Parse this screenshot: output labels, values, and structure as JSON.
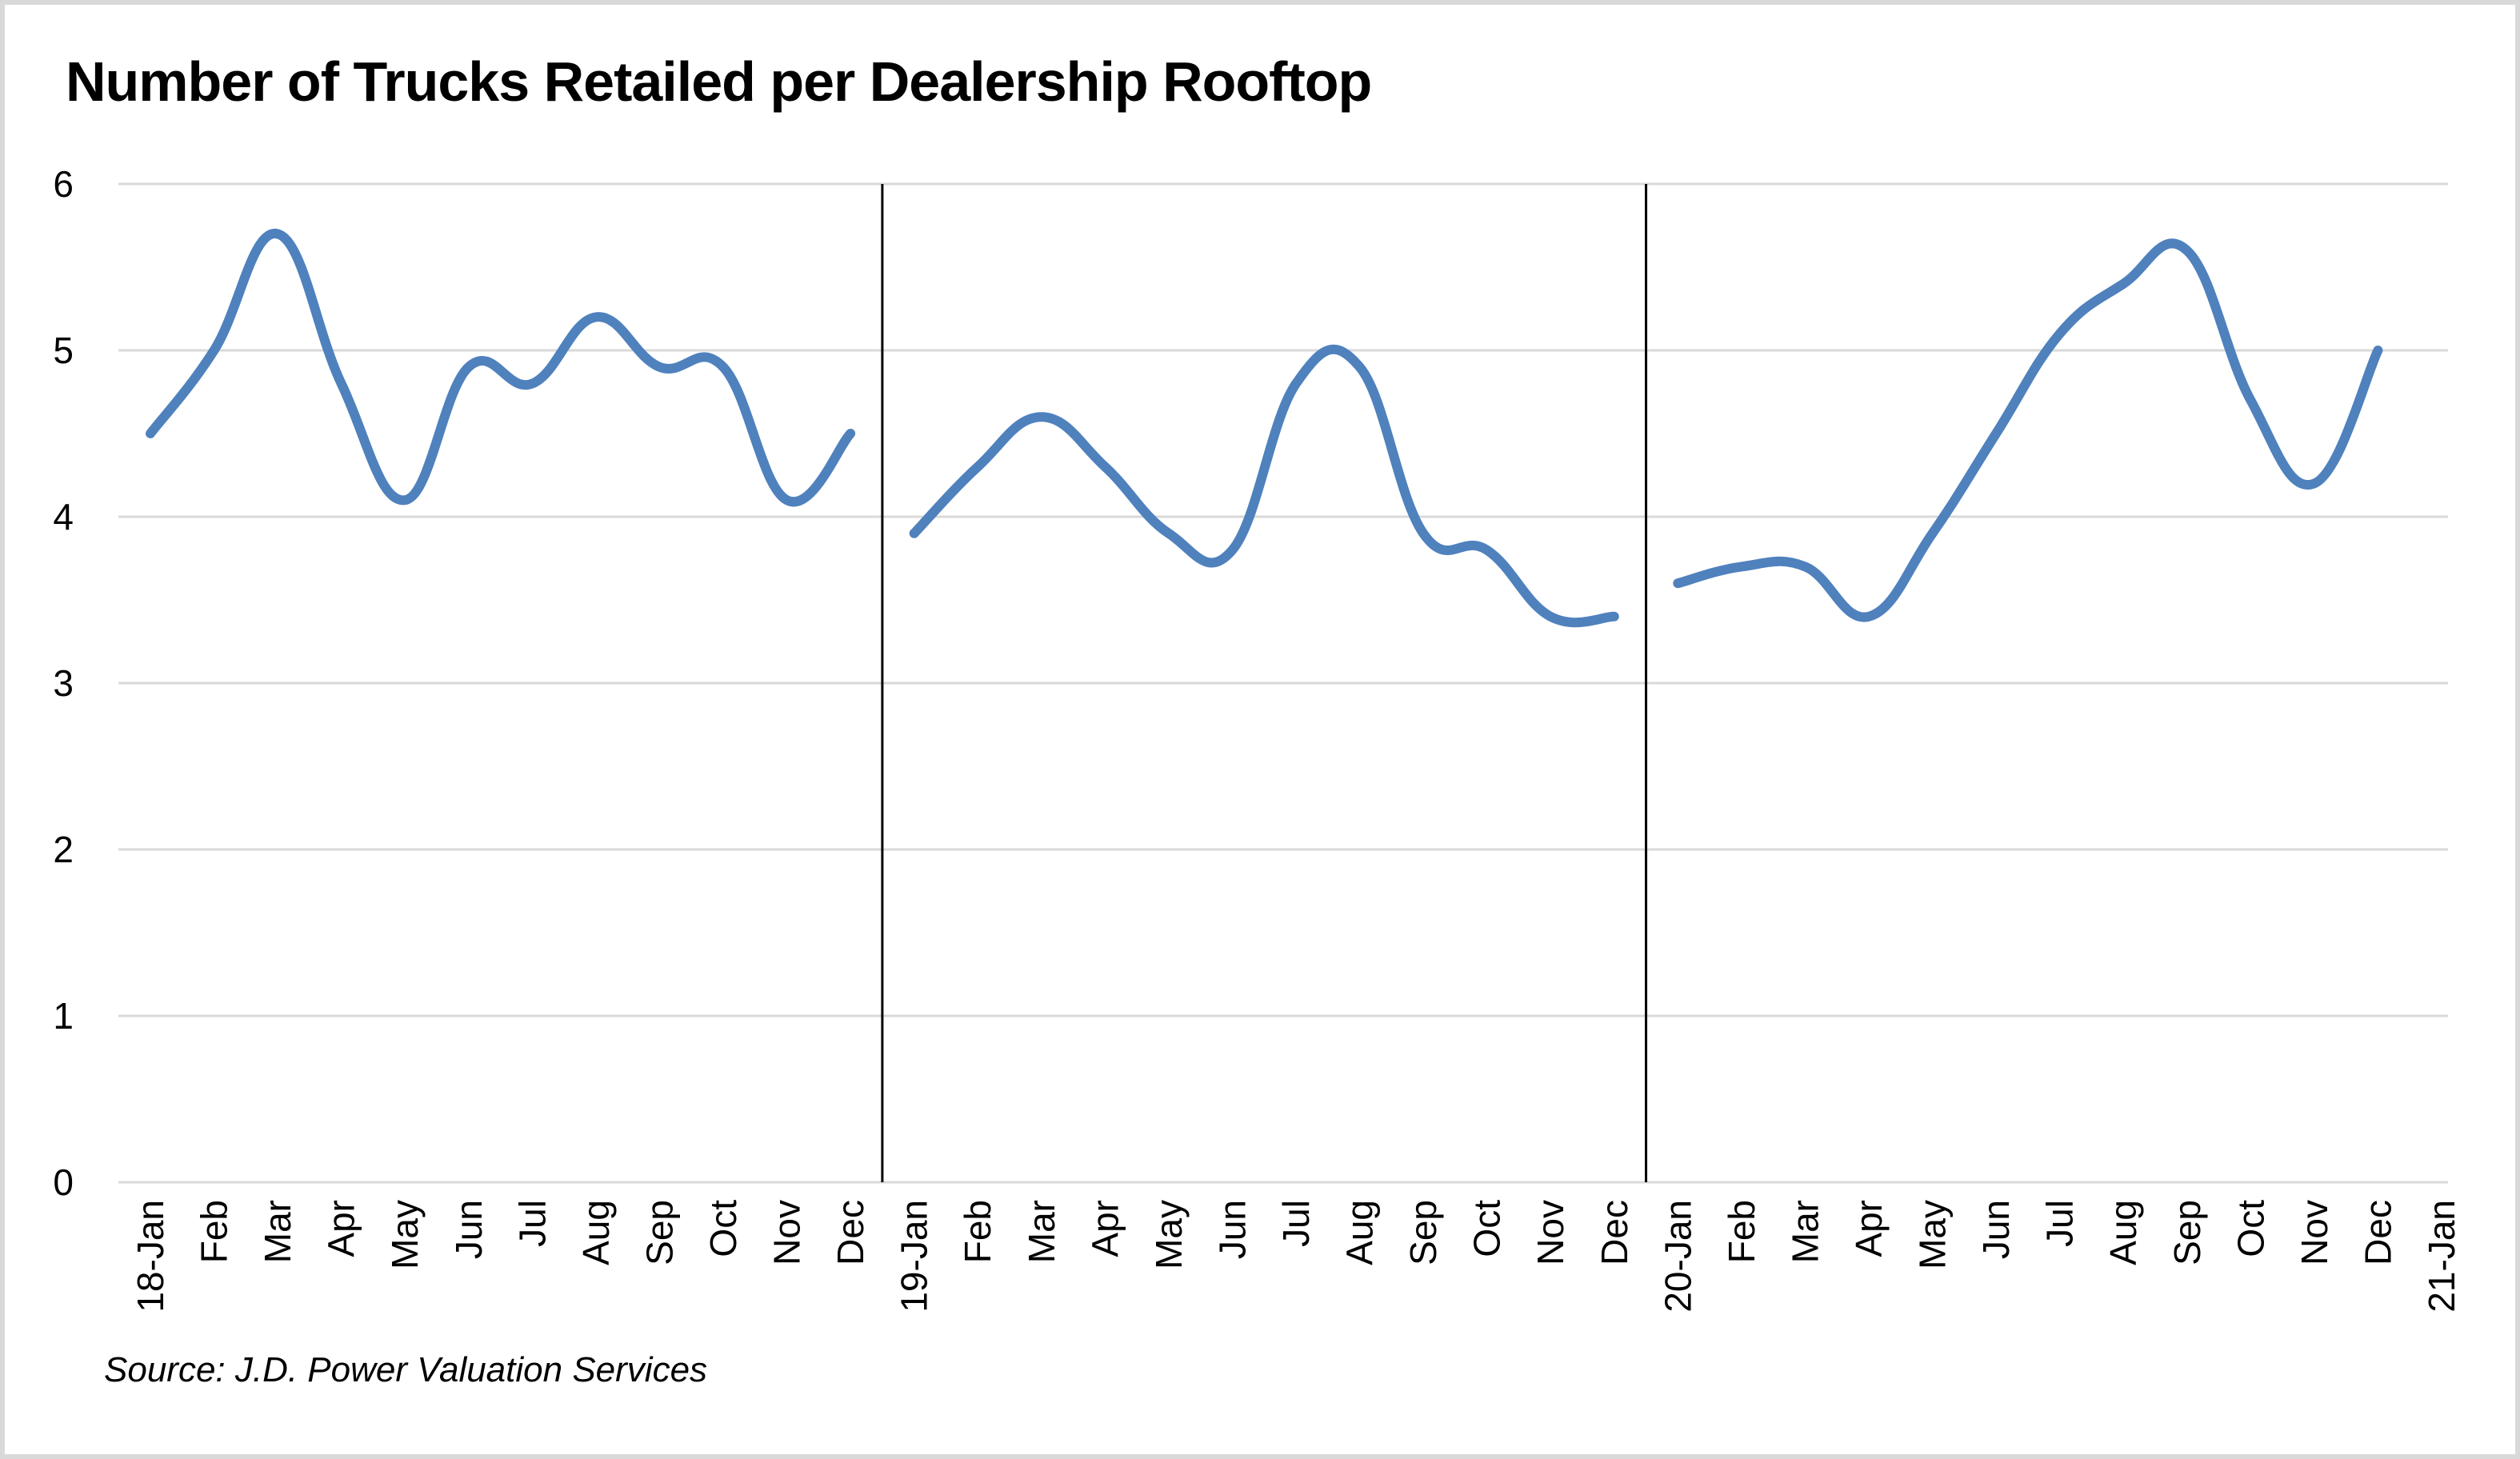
{
  "chart_data": {
    "type": "line",
    "title": "Number of Trucks Retailed per Dealership Rooftop",
    "source": "Source: J.D. Power Valuation Services",
    "xlabel": "",
    "ylabel": "",
    "ylim": [
      0,
      6
    ],
    "yticks": [
      "0",
      "1",
      "2",
      "3",
      "4",
      "5",
      "6"
    ],
    "grid": "horizontal",
    "line_color": "#4f81bd",
    "categories": [
      "18-Jan",
      "Feb",
      "Mar",
      "Apr",
      "May",
      "Jun",
      "Jul",
      "Aug",
      "Sep",
      "Oct",
      "Nov",
      "Dec",
      "19-Jan",
      "Feb",
      "Mar",
      "Apr",
      "May",
      "Jun",
      "Jul",
      "Aug",
      "Sep",
      "Oct",
      "Nov",
      "Dec",
      "20-Jan",
      "Feb",
      "Mar",
      "Apr",
      "May",
      "Jun",
      "Jul",
      "Aug",
      "Sep",
      "Oct",
      "Nov",
      "Dec",
      "21-Jan"
    ],
    "series": [
      {
        "segments": [
          [
            4.5,
            5.0,
            5.7,
            4.8,
            4.1,
            4.9,
            4.8,
            5.2,
            4.9,
            4.9,
            4.1,
            4.5
          ],
          [
            3.9,
            4.3,
            4.6,
            4.3,
            3.9,
            3.8,
            4.8,
            4.9,
            3.9,
            3.8,
            3.4,
            3.4
          ],
          [
            3.6,
            3.7,
            3.7,
            3.4,
            3.9,
            4.5,
            5.1,
            5.4,
            5.6,
            4.7,
            4.2,
            5.0
          ]
        ]
      }
    ],
    "dividers_at": [
      "19-Jan",
      "20-Jan"
    ]
  }
}
